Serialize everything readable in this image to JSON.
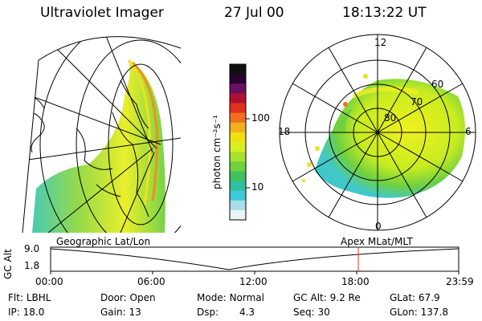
{
  "header": {
    "instrument": "Ultraviolet Imager",
    "date": "27 Jul 00",
    "time": "18:13:22 UT"
  },
  "colorbar": {
    "unit_label": "photon cm⁻²s⁻¹",
    "tick_high": "100",
    "tick_low": "10",
    "colors": [
      "#101010",
      "#2a0030",
      "#6a1060",
      "#b01030",
      "#e03020",
      "#f07020",
      "#f0b020",
      "#f0e010",
      "#d8f020",
      "#a8e030",
      "#70d040",
      "#40c060",
      "#30c0a0",
      "#40c8d8",
      "#a8dce8",
      "#e8f4f8"
    ]
  },
  "left_panel": {
    "label": "Geographic Lat/Lon"
  },
  "right_panel": {
    "label": "Apex MLat/MLT",
    "mlt_labels": {
      "top": "12",
      "left": "18",
      "right": "6",
      "bottom": "0"
    },
    "lat_labels": [
      "80",
      "70",
      "60"
    ]
  },
  "altitude_plot": {
    "axis_label": "GC Alt",
    "y_ticks": [
      "9.0",
      "1.8"
    ],
    "x_ticks": [
      "00:00",
      "06:00",
      "12:00",
      "18:00",
      "23:59"
    ],
    "marker_color": "#e03030"
  },
  "info": {
    "row1": [
      {
        "label": "Flt:",
        "value": "LBHL"
      },
      {
        "label": "Door:",
        "value": "Open"
      },
      {
        "label": "Mode:",
        "value": "Normal"
      },
      {
        "label": "GC Alt:",
        "value": "9.2 Re"
      },
      {
        "label": "GLat:",
        "value": "67.9"
      }
    ],
    "row2": [
      {
        "label": "IP:",
        "value": "18.0"
      },
      {
        "label": "Gain:",
        "value": "13"
      },
      {
        "label": "Dsp:",
        "value": "4.3"
      },
      {
        "label": "Seq:",
        "value": "30"
      },
      {
        "label": "GLon:",
        "value": "137.8"
      }
    ]
  }
}
